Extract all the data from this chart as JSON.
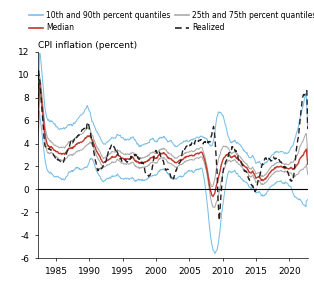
{
  "title": "CPI inflation (percent)",
  "ylim": [
    -6,
    12
  ],
  "yticks": [
    -6,
    -4,
    -2,
    0,
    2,
    4,
    6,
    8,
    10,
    12
  ],
  "xticks": [
    1985,
    1990,
    1995,
    2000,
    2005,
    2010,
    2015,
    2020
  ],
  "colors": {
    "q10_90": "#7bbfe8",
    "q25_75": "#aaaaaa",
    "median": "#c0392b",
    "realized": "#222222",
    "zeroline": "#000000"
  },
  "start_year": 1982.25,
  "end_year": 2022.75
}
